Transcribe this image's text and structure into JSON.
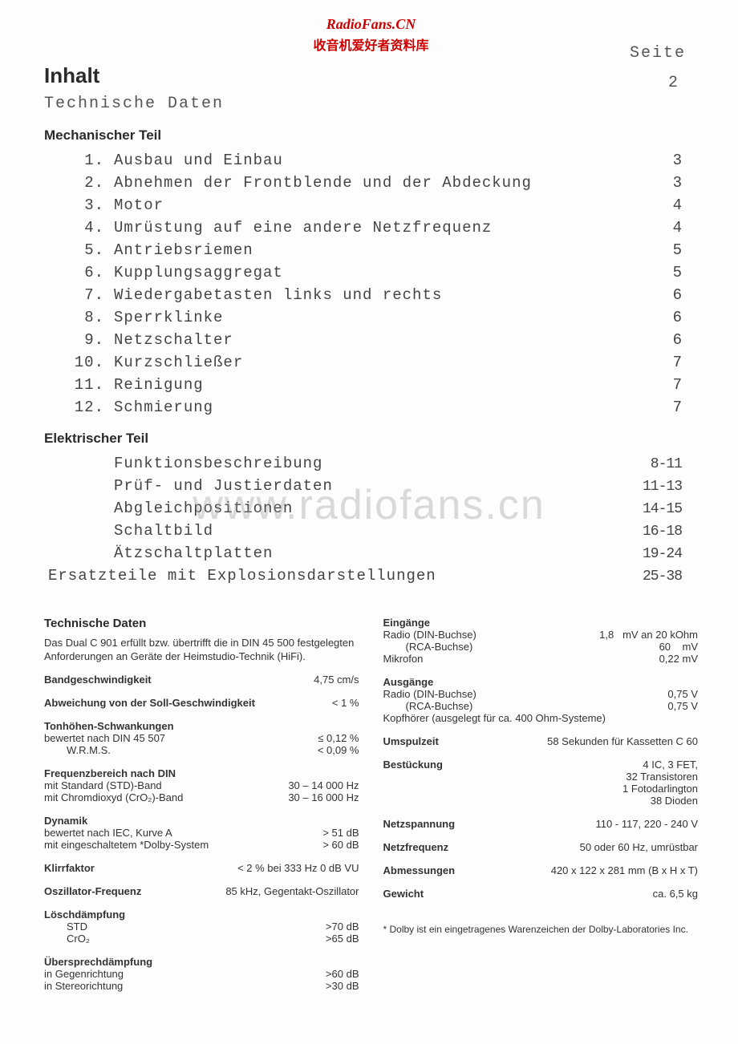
{
  "watermark": {
    "line1": "RadioFans.CN",
    "line2": "收音机爱好者资料库",
    "center": "www.radiofans.cn"
  },
  "header": {
    "seite": "Seite",
    "title": "Inhalt",
    "subtitle": "Technische Daten",
    "page_td": "2"
  },
  "mech": {
    "heading": "Mechanischer Teil",
    "items": [
      {
        "n": "1.",
        "t": "Ausbau und Einbau",
        "p": "3"
      },
      {
        "n": "2.",
        "t": "Abnehmen der Frontblende und der Abdeckung",
        "p": "3"
      },
      {
        "n": "3.",
        "t": "Motor",
        "p": "4"
      },
      {
        "n": "4.",
        "t": "Umrüstung auf eine andere Netzfrequenz",
        "p": "4"
      },
      {
        "n": "5.",
        "t": "Antriebsriemen",
        "p": "5"
      },
      {
        "n": "6.",
        "t": "Kupplungsaggregat",
        "p": "5"
      },
      {
        "n": "7.",
        "t": "Wiedergabetasten links und rechts",
        "p": "6"
      },
      {
        "n": "8.",
        "t": "Sperrklinke",
        "p": "6"
      },
      {
        "n": "9.",
        "t": "Netzschalter",
        "p": "6"
      },
      {
        "n": "10.",
        "t": "Kurzschließer",
        "p": "7"
      },
      {
        "n": "11.",
        "t": "Reinigung",
        "p": "7"
      },
      {
        "n": "12.",
        "t": "Schmierung",
        "p": "7"
      }
    ]
  },
  "elek": {
    "heading": "Elektrischer Teil",
    "items": [
      {
        "t": "Funktionsbeschreibung",
        "p": "8-11"
      },
      {
        "t": "Prüf- und Justierdaten",
        "p": "11-13"
      },
      {
        "t": "Abgleichpositionen",
        "p": "14-15"
      },
      {
        "t": "Schaltbild",
        "p": "16-18"
      },
      {
        "t": "Ätzschaltplatten",
        "p": "19-24"
      }
    ],
    "ersatz": {
      "t": "Ersatzteile mit Explosionsdarstellungen",
      "p": "25-38"
    }
  },
  "tech": {
    "title": "Technische Daten",
    "intro": "Das Dual C 901 erfüllt bzw. übertrifft die in DIN 45 500 festgelegten Anforderungen an Geräte der Heimstudio-Technik (HiFi).",
    "left": {
      "bandgeschw": {
        "l": "Bandgeschwindigkeit",
        "v": "4,75 cm/s"
      },
      "abweich": {
        "l": "Abweichung von der Soll-Geschwindigkeit",
        "v": "< 1 %"
      },
      "tonhoehen": {
        "l": "Tonhöhen-Schwankungen",
        "s1": "bewertet nach DIN 45 507",
        "v1": "≤ 0,12 %",
        "s2": "W.R.M.S.",
        "v2": "< 0,09 %"
      },
      "freq": {
        "l": "Frequenzbereich nach DIN",
        "s1": "mit Standard (STD)-Band",
        "v1": "30 – 14 000 Hz",
        "s2": "mit Chromdioxyd (CrO₂)-Band",
        "v2": "30 – 16 000 Hz"
      },
      "dyn": {
        "l": "Dynamik",
        "s1": "bewertet nach IEC, Kurve A",
        "v1": "> 51 dB",
        "s2": "mit eingeschaltetem *Dolby-System",
        "v2": "> 60 dB"
      },
      "klirr": {
        "l": "Klirrfaktor",
        "v": "< 2 % bei 333 Hz 0 dB VU"
      },
      "osz": {
        "l": "Oszillator-Frequenz",
        "v": "85 kHz, Gegentakt-Oszillator"
      },
      "loesch": {
        "l": "Löschdämpfung",
        "s1": "STD",
        "v1": ">70 dB",
        "s2": "CrO₂",
        "v2": ">65 dB"
      },
      "ueber": {
        "l": "Übersprechdämpfung",
        "s1": "in Gegenrichtung",
        "v1": ">60 dB",
        "s2": "in Stereorichtung",
        "v2": ">30 dB"
      }
    },
    "right": {
      "eing": {
        "l": "Eingänge",
        "s1": "Radio (DIN-Buchse)",
        "v1": "1,8   mV an 20 kOhm",
        "s2": "(RCA-Buchse)",
        "v2": "60    mV",
        "s3": "Mikrofon",
        "v3": "0,22 mV"
      },
      "ausg": {
        "l": "Ausgänge",
        "s1": "Radio (DIN-Buchse)",
        "v1": "0,75 V",
        "s2": "(RCA-Buchse)",
        "v2": "0,75 V",
        "s3": "Kopfhörer (ausgelegt für ca. 400 Ohm-Systeme)"
      },
      "umspul": {
        "l": "Umspulzeit",
        "v": "58 Sekunden für Kassetten C 60"
      },
      "bestueck": {
        "l": "Bestückung",
        "v": "4 IC, 3 FET,\n32 Transistoren\n1 Fotodarlington\n38 Dioden"
      },
      "netzsp": {
        "l": "Netzspannung",
        "v": "110 - 117, 220 - 240 V"
      },
      "netzfr": {
        "l": "Netzfrequenz",
        "v": "50 oder 60 Hz, umrüstbar"
      },
      "abm": {
        "l": "Abmessungen",
        "v": "420 x 122 x 281 mm (B x H x T)"
      },
      "gew": {
        "l": "Gewicht",
        "v": "ca. 6,5 kg"
      }
    },
    "footnote": "* Dolby ist ein eingetragenes Warenzeichen der Dolby-Laboratories Inc."
  }
}
